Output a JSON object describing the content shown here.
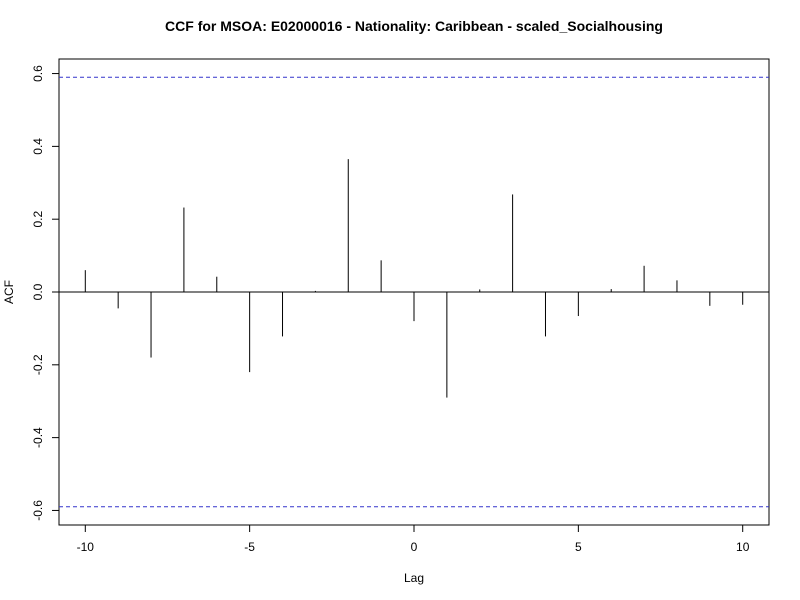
{
  "chart_data": {
    "type": "bar",
    "title": "CCF for MSOA: E02000016 - Nationality: Caribbean - scaled_Socialhousing",
    "xlabel": "Lag",
    "ylabel": "ACF",
    "xlim": [
      -10.8,
      10.8
    ],
    "ylim": [
      -0.64,
      0.64
    ],
    "x_ticks": [
      -10,
      -5,
      0,
      5,
      10
    ],
    "x_tick_labels": [
      "-10",
      "-5",
      "0",
      "5",
      "10"
    ],
    "y_ticks": [
      -0.6,
      -0.4,
      -0.2,
      0.0,
      0.2,
      0.4,
      0.6
    ],
    "y_tick_labels": [
      "-0.6",
      "-0.4",
      "-0.2",
      "0.0",
      "0.2",
      "0.4",
      "0.6"
    ],
    "lags": [
      -10,
      -9,
      -8,
      -7,
      -6,
      -5,
      -4,
      -3,
      -2,
      -1,
      0,
      1,
      2,
      3,
      4,
      5,
      6,
      7,
      8,
      9,
      10
    ],
    "values": [
      0.06,
      -0.045,
      -0.18,
      0.232,
      0.042,
      -0.22,
      -0.122,
      0.003,
      0.365,
      0.087,
      -0.08,
      -0.29,
      0.007,
      0.268,
      -0.122,
      -0.066,
      0.008,
      0.072,
      0.032,
      -0.038,
      -0.035
    ],
    "confidence_band": [
      -0.59,
      0.59
    ],
    "colors": {
      "bars": "#000000",
      "confidence": "#3333cc"
    },
    "grid": false
  }
}
